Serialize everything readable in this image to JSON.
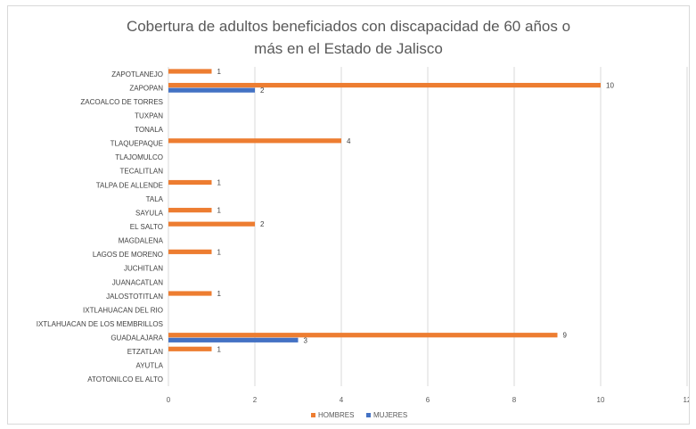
{
  "chart_data": {
    "type": "bar",
    "orientation": "horizontal",
    "title": "Cobertura de adultos beneficiados con discapacidad de 60 años o\nmás en el Estado de Jalisco",
    "categories": [
      "ZAPOTLANEJO",
      "ZAPOPAN",
      "ZACOALCO DE TORRES",
      "TUXPAN",
      "TONALA",
      "TLAQUEPAQUE",
      "TLAJOMULCO",
      "TECALITLAN",
      "TALPA DE ALLENDE",
      "TALA",
      "SAYULA",
      "EL SALTO",
      "MAGDALENA",
      "LAGOS DE MORENO",
      "JUCHITLAN",
      "JUANACATLAN",
      "JALOSTOTITLAN",
      "IXTLAHUACAN DEL RIO",
      "IXTLAHUACAN DE LOS MEMBRILLOS",
      "GUADALAJARA",
      "ETZATLAN",
      "AYUTLA",
      "ATOTONILCO EL ALTO"
    ],
    "series": [
      {
        "name": "HOMBRES",
        "color": "#ED7D31",
        "values": [
          1,
          10,
          null,
          null,
          null,
          4,
          null,
          null,
          1,
          null,
          1,
          2,
          null,
          1,
          null,
          null,
          1,
          null,
          null,
          9,
          1,
          null,
          null
        ]
      },
      {
        "name": "MUJERES",
        "color": "#4472C4",
        "values": [
          null,
          2,
          null,
          null,
          null,
          null,
          null,
          null,
          null,
          null,
          null,
          null,
          null,
          null,
          null,
          null,
          null,
          null,
          null,
          3,
          null,
          null,
          null
        ]
      }
    ],
    "xlim": [
      0,
      12
    ],
    "xticks": [
      "0",
      "2",
      "4",
      "6",
      "8",
      "10",
      "12"
    ],
    "grid": true,
    "legend": "bottom"
  }
}
